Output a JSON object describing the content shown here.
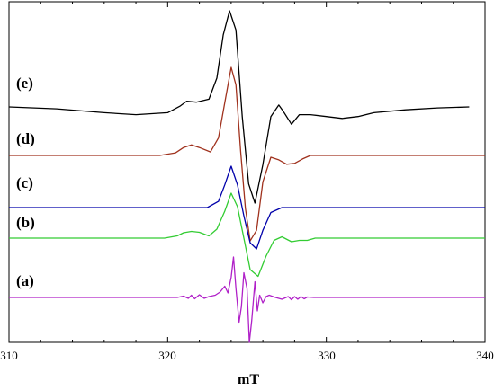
{
  "chart_data": {
    "type": "line",
    "title": "",
    "xlabel": "mT",
    "ylabel": "",
    "xlim": [
      310,
      340
    ],
    "x_ticks": [
      "310",
      "320",
      "330",
      "340"
    ],
    "grid": false,
    "legend": "none",
    "series": [
      {
        "label": "(e)",
        "color": "#000000",
        "x": [
          310,
          313,
          316,
          318,
          320,
          320.8,
          321.2,
          321.8,
          322.6,
          323.1,
          323.5,
          323.9,
          324.3,
          324.7,
          325.1,
          325.5,
          326,
          326.5,
          327,
          327.3,
          327.8,
          328.3,
          329,
          330,
          331,
          332,
          333,
          335,
          337,
          339
        ],
        "values": [
          0,
          -0.02,
          -0.06,
          -0.08,
          -0.06,
          0.01,
          0.06,
          0.05,
          0.08,
          0.3,
          0.75,
          1.0,
          0.8,
          -0.1,
          -0.8,
          -1.0,
          -0.6,
          -0.1,
          0.02,
          -0.05,
          -0.18,
          -0.08,
          -0.08,
          -0.1,
          -0.12,
          -0.1,
          -0.06,
          -0.03,
          -0.01,
          0
        ]
      },
      {
        "label": "(d)",
        "color": "#a0321e",
        "x": [
          310,
          319.5,
          320.5,
          321,
          321.5,
          322,
          322.7,
          323.2,
          323.6,
          324,
          324.3,
          324.6,
          324.9,
          325.2,
          325.6,
          326,
          326.5,
          327,
          327.5,
          328,
          328.5,
          329,
          340
        ],
        "values": [
          0,
          0,
          0.03,
          0.09,
          0.12,
          0.09,
          0.04,
          0.2,
          0.6,
          1.0,
          0.8,
          0.05,
          -0.6,
          -0.97,
          -0.85,
          -0.3,
          -0.02,
          -0.05,
          -0.1,
          -0.09,
          -0.04,
          0,
          0
        ]
      },
      {
        "label": "(c)",
        "color": "#0000aa",
        "x": [
          310,
          322.5,
          323.2,
          323.6,
          324,
          324.4,
          324.8,
          325.2,
          325.6,
          326,
          326.5,
          327.2,
          340
        ],
        "values": [
          0,
          0,
          0.15,
          0.55,
          1.0,
          0.55,
          -0.2,
          -0.85,
          -1.0,
          -0.55,
          -0.12,
          0,
          0
        ]
      },
      {
        "label": "(b)",
        "color": "#33cc33",
        "x": [
          310,
          319.8,
          320.6,
          321,
          321.5,
          322,
          322.6,
          323.1,
          323.6,
          324,
          324.4,
          324.8,
          325.2,
          325.7,
          326.2,
          326.7,
          327.2,
          327.8,
          328.3,
          328.8,
          329.3,
          340
        ],
        "values": [
          0,
          0,
          0.05,
          0.12,
          0.15,
          0.13,
          0.05,
          0.2,
          0.6,
          1.0,
          0.7,
          0.0,
          -0.7,
          -0.85,
          -0.4,
          -0.05,
          0.03,
          -0.08,
          -0.05,
          -0.05,
          0,
          0
        ]
      },
      {
        "label": "(a)",
        "color": "#b020c8",
        "x": [
          310,
          320.6,
          321,
          321.3,
          321.5,
          321.7,
          322,
          322.3,
          322.6,
          323,
          323.3,
          323.6,
          323.8,
          324,
          324.15,
          324.3,
          324.5,
          324.65,
          324.8,
          325,
          325.15,
          325.3,
          325.5,
          325.65,
          325.8,
          326,
          326.2,
          326.4,
          326.8,
          327.2,
          327.6,
          327.8,
          328,
          328.2,
          328.4,
          328.6,
          328.8,
          329.2,
          340
        ],
        "values": [
          0,
          0,
          0.03,
          -0.02,
          0.05,
          -0.03,
          0.06,
          -0.02,
          0.02,
          0.05,
          0.12,
          0.25,
          0.1,
          0.45,
          0.9,
          0.2,
          -0.55,
          -0.2,
          0.55,
          0.2,
          -1.0,
          -0.5,
          0.35,
          -0.3,
          0.05,
          -0.12,
          0.02,
          0.05,
          0.0,
          -0.04,
          0.02,
          -0.05,
          0.02,
          -0.04,
          0.02,
          -0.03,
          0.01,
          0,
          0
        ]
      }
    ]
  }
}
